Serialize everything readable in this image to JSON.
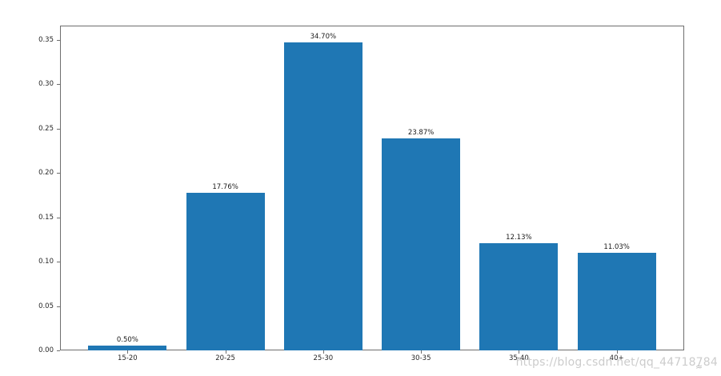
{
  "chart_data": {
    "type": "bar",
    "title": "",
    "xlabel": "",
    "ylabel": "",
    "categories": [
      "15-20",
      "20-25",
      "25-30",
      "30-35",
      "35-40",
      "40+"
    ],
    "values": [
      0.005,
      0.1776,
      0.347,
      0.2387,
      0.1213,
      0.1103
    ],
    "bar_labels": [
      "0.50%",
      "17.76%",
      "34.70%",
      "23.87%",
      "12.13%",
      "11.03%"
    ],
    "bar_color": "#1f77b4",
    "bar_width": 0.8,
    "xlim": [
      -0.69,
      5.69
    ],
    "ylim": [
      0,
      0.3662
    ],
    "ytick_labels": [
      "0.00",
      "0.05",
      "0.10",
      "0.15",
      "0.20",
      "0.25",
      "0.30",
      "0.35"
    ],
    "grid": false,
    "legend": "none",
    "spine_color": "#6e6e6e"
  },
  "watermark": {
    "text": "https://blog.csdn.net/qq_44718784",
    "color": "#cccccc"
  },
  "corner_mark": {
    "glyph": "≈"
  }
}
